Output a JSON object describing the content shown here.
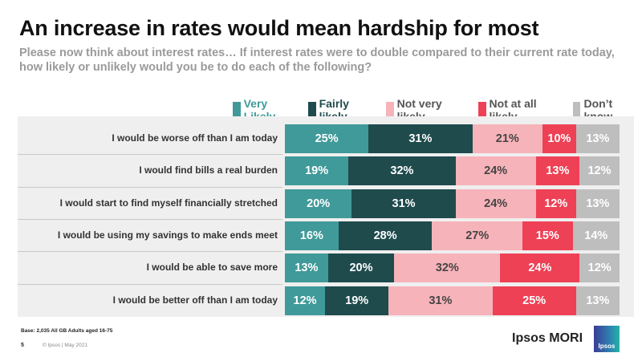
{
  "header": {
    "title": "An increase in rates would mean hardship for most",
    "subtitle": "Please now think about interest rates… If interest rates were to double compared to their current rate today, how likely or unlikely would you be to do each of the following?"
  },
  "chart_data": {
    "type": "bar",
    "orientation": "horizontal",
    "stacked": true,
    "legend_position": "top-right",
    "categories": [
      "I would be worse off than I am today",
      "I would find bills a real burden",
      "I would start to find myself financially stretched",
      "I would be using my savings to make ends meet",
      "I would be able to save more",
      "I would be better off than I am today"
    ],
    "series": [
      {
        "name": "Very Likely",
        "color": "#3f9a99",
        "label_color": "#3f9a99",
        "text_color": "#ffffff",
        "values": [
          25,
          19,
          20,
          16,
          13,
          12
        ]
      },
      {
        "name": "Fairly likely",
        "color": "#1f4b4d",
        "label_color": "#1f4b4d",
        "text_color": "#ffffff",
        "values": [
          31,
          32,
          31,
          28,
          20,
          19
        ]
      },
      {
        "name": "Not very likely",
        "color": "#f7b3ba",
        "label_color": "#555555",
        "text_color": "#444444",
        "values": [
          21,
          24,
          24,
          27,
          32,
          31
        ]
      },
      {
        "name": "Not at all likely",
        "color": "#ee4155",
        "label_color": "#555555",
        "text_color": "#ffffff",
        "values": [
          10,
          13,
          12,
          15,
          24,
          25
        ]
      },
      {
        "name": "Don’t know",
        "color": "#bebebe",
        "label_color": "#555555",
        "text_color": "#ffffff",
        "values": [
          13,
          12,
          13,
          14,
          12,
          13
        ]
      }
    ],
    "unit": "%"
  },
  "footer": {
    "base": "Base: 2,035 All GB Adults aged 16-75",
    "page_number": "5",
    "copyright": "© Ipsos | May 2021",
    "brand": "Ipsos MORI",
    "logo_text": "Ipsos"
  }
}
